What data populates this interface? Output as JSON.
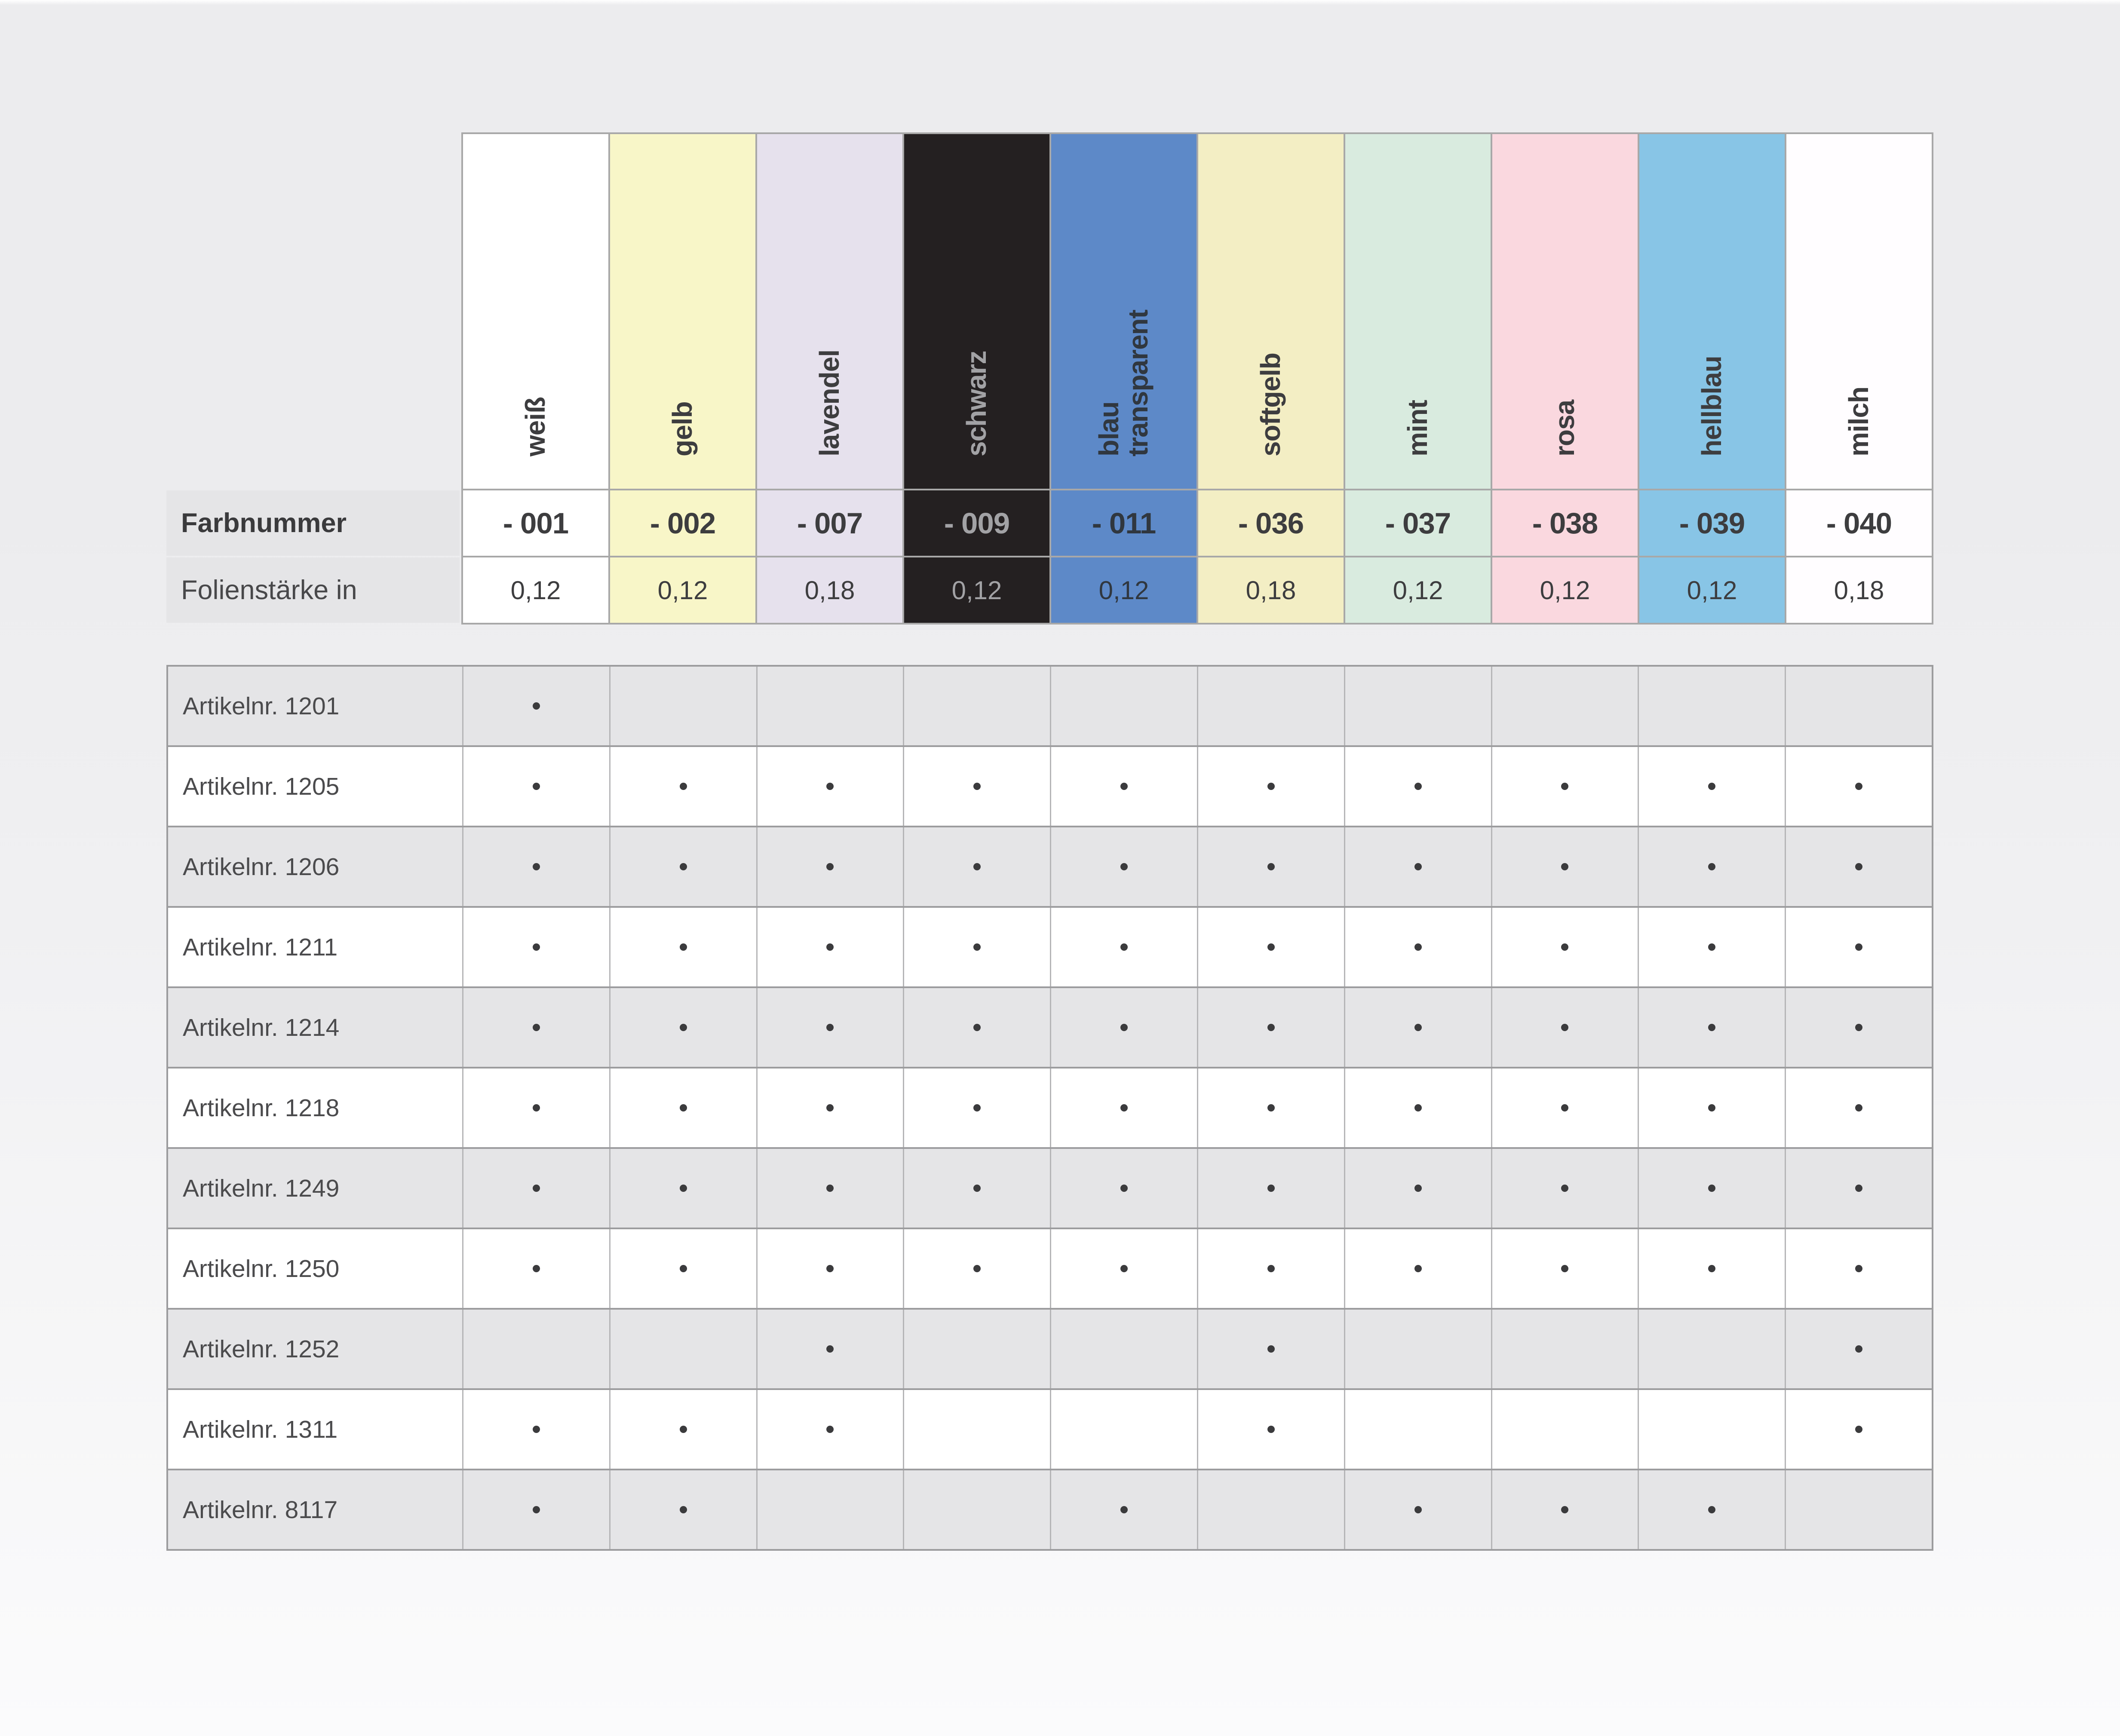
{
  "table": {
    "row_labels": {
      "farbnummer": "Farbnummer",
      "folienstaerke": "Folienstärke in"
    },
    "columns": [
      {
        "name": "weiß",
        "number": "- 001",
        "thickness": "0,12",
        "swatch": "#ffffff",
        "ink": "#3d3d3f"
      },
      {
        "name": "gelb",
        "number": "- 002",
        "thickness": "0,12",
        "swatch": "#f8f6c8",
        "ink": "#3d3d3f"
      },
      {
        "name": "lavendel",
        "number": "- 007",
        "thickness": "0,18",
        "swatch": "#e6e1ed",
        "ink": "#3d3d3f"
      },
      {
        "name": "schwarz",
        "number": "- 009",
        "thickness": "0,12",
        "swatch": "#242021",
        "ink": "#a2a2a5"
      },
      {
        "name": "blau\ntransparent",
        "number": "- 011",
        "thickness": "0,12",
        "swatch": "#5d89c8",
        "ink": "#30373f"
      },
      {
        "name": "softgelb",
        "number": "- 036",
        "thickness": "0,18",
        "swatch": "#f3eec4",
        "ink": "#3d3d3f"
      },
      {
        "name": "mint",
        "number": "- 037",
        "thickness": "0,12",
        "swatch": "#d9ebdf",
        "ink": "#3d3d3f"
      },
      {
        "name": "rosa",
        "number": "- 038",
        "thickness": "0,12",
        "swatch": "#fad8df",
        "ink": "#3d3d3f"
      },
      {
        "name": "hellblau",
        "number": "- 039",
        "thickness": "0,12",
        "swatch": "#88c5e6",
        "ink": "#3d3d3f"
      },
      {
        "name": "milch",
        "number": "- 040",
        "thickness": "0,18",
        "swatch": "#fffdff",
        "ink": "#3d3d3f"
      }
    ],
    "articles": [
      {
        "label": "Artikelnr. 1201",
        "dots": [
          1,
          0,
          0,
          0,
          0,
          0,
          0,
          0,
          0,
          0
        ]
      },
      {
        "label": "Artikelnr. 1205",
        "dots": [
          1,
          1,
          1,
          1,
          1,
          1,
          1,
          1,
          1,
          1
        ]
      },
      {
        "label": "Artikelnr. 1206",
        "dots": [
          1,
          1,
          1,
          1,
          1,
          1,
          1,
          1,
          1,
          1
        ]
      },
      {
        "label": "Artikelnr. 1211",
        "dots": [
          1,
          1,
          1,
          1,
          1,
          1,
          1,
          1,
          1,
          1
        ]
      },
      {
        "label": "Artikelnr. 1214",
        "dots": [
          1,
          1,
          1,
          1,
          1,
          1,
          1,
          1,
          1,
          1
        ]
      },
      {
        "label": "Artikelnr. 1218",
        "dots": [
          1,
          1,
          1,
          1,
          1,
          1,
          1,
          1,
          1,
          1
        ]
      },
      {
        "label": "Artikelnr. 1249",
        "dots": [
          1,
          1,
          1,
          1,
          1,
          1,
          1,
          1,
          1,
          1
        ]
      },
      {
        "label": "Artikelnr. 1250",
        "dots": [
          1,
          1,
          1,
          1,
          1,
          1,
          1,
          1,
          1,
          1
        ]
      },
      {
        "label": "Artikelnr. 1252",
        "dots": [
          0,
          0,
          1,
          0,
          0,
          1,
          0,
          0,
          0,
          1
        ]
      },
      {
        "label": "Artikelnr. 1311",
        "dots": [
          1,
          1,
          1,
          0,
          0,
          1,
          0,
          0,
          0,
          1
        ]
      },
      {
        "label": "Artikelnr. 8117",
        "dots": [
          1,
          1,
          0,
          0,
          1,
          0,
          1,
          1,
          1,
          0
        ]
      }
    ],
    "styles": {
      "dot_color": "#3b3b3d",
      "zebra_gray": "#e5e5e7",
      "grid_line_dark": "#9c9c9e",
      "grid_line_light": "#b5b5b7",
      "header_grid_line": "#a8a8a8",
      "label_cell_bg": "#e5e5e7"
    }
  }
}
